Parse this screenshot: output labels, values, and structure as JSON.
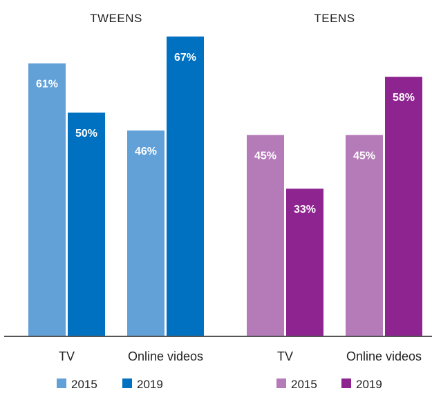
{
  "chart_data": {
    "type": "bar",
    "ylim": [
      0,
      70
    ],
    "grid": false,
    "legend_placement": "bottom",
    "value_suffix": "%",
    "groups": [
      {
        "title": "TWEENS",
        "categories": [
          "TV",
          "Online videos"
        ],
        "series": [
          {
            "name": "2015",
            "color": "#62a0d8",
            "values": [
              61,
              46
            ]
          },
          {
            "name": "2019",
            "color": "#0070c0",
            "values": [
              50,
              67
            ]
          }
        ]
      },
      {
        "title": "TEENS",
        "categories": [
          "TV",
          "Online videos"
        ],
        "series": [
          {
            "name": "2015",
            "color": "#b57bb9",
            "values": [
              45,
              45
            ]
          },
          {
            "name": "2019",
            "color": "#8e2490",
            "values": [
              33,
              58
            ]
          }
        ]
      }
    ]
  }
}
